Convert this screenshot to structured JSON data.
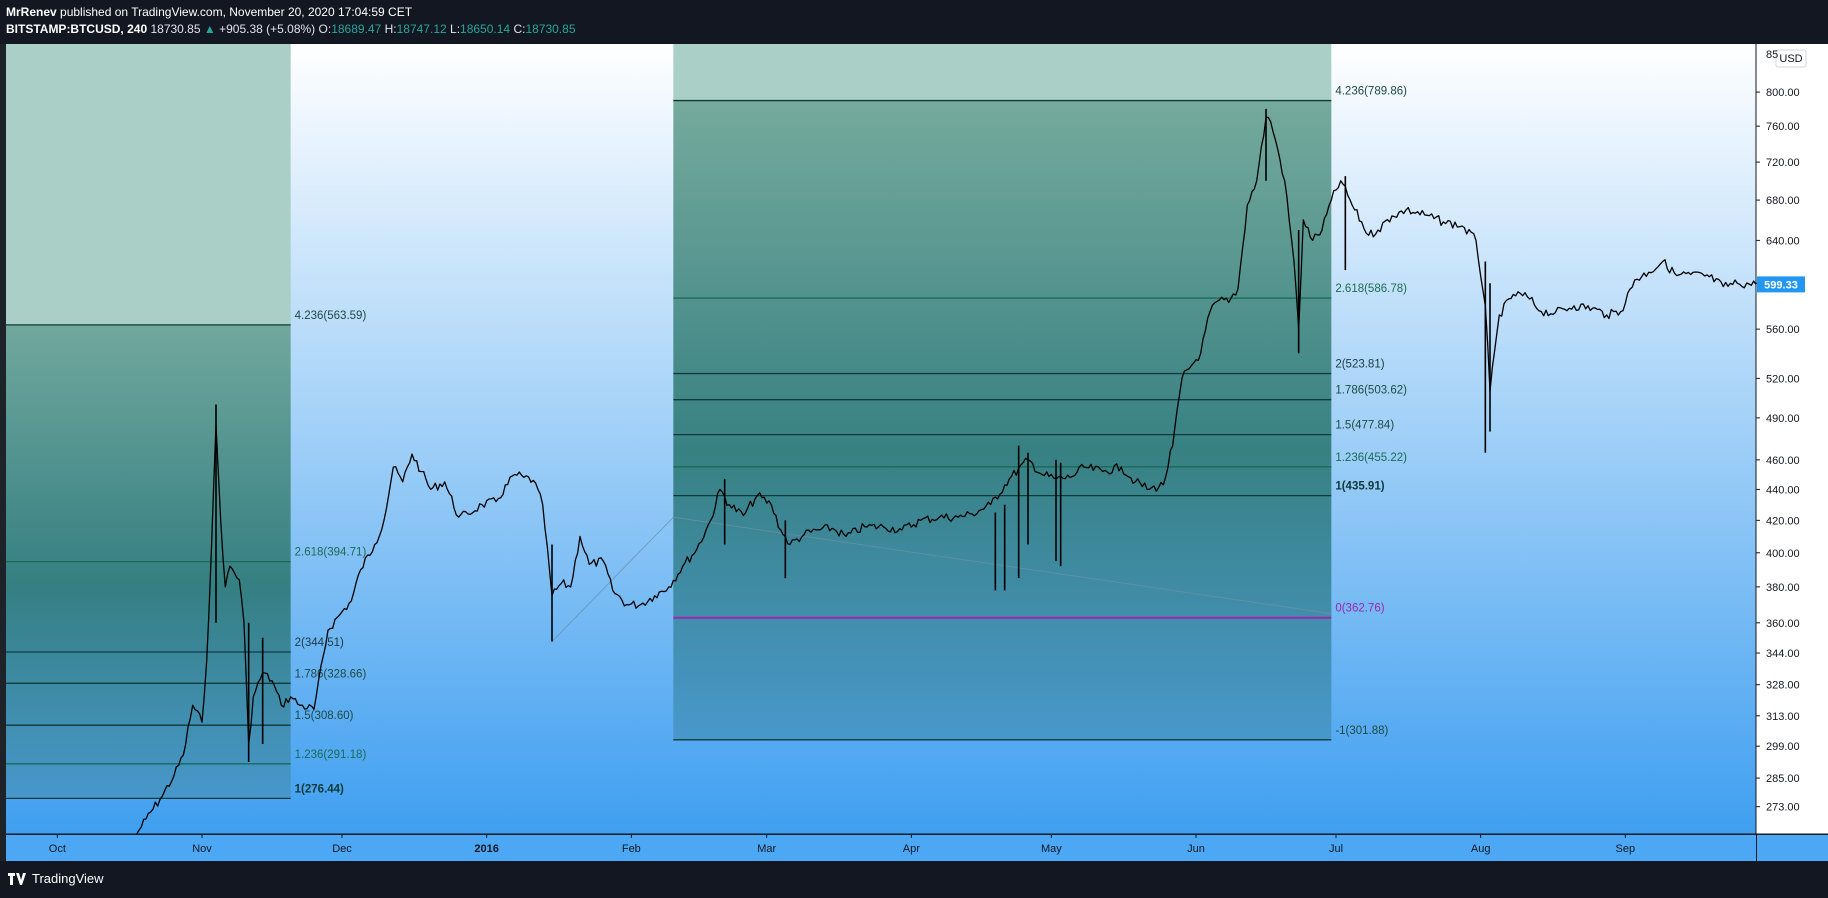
{
  "header": {
    "author": "MrRenev",
    "published": "published on TradingView.com, November 20, 2020 17:04:59 CET",
    "symbol": "BITSTAMP:BTCUSD, 240",
    "last": "18730.85",
    "change_arrow": "▲",
    "change": "+905.38 (+5.08%)",
    "o_label": "O:",
    "o_value": "18689.47",
    "h_label": "H:",
    "h_value": "18747.12",
    "l_label": "L:",
    "l_value": "18650.14",
    "c_label": "C:",
    "c_value": "18730.85"
  },
  "footer": {
    "brand": "TradingView"
  },
  "chart_data": {
    "type": "line",
    "series_name": "BTCUSD",
    "scale": "log",
    "currency_badge": "USD",
    "last_price_label": "599.33",
    "last_price_color": "#2196f3",
    "top_tick_partial": "85",
    "ylim": [
      262,
      860
    ],
    "y_ticks": [
      273,
      285,
      299,
      313,
      328,
      344,
      360,
      380,
      400,
      420,
      440,
      460,
      490,
      520,
      560,
      600,
      640,
      680,
      720,
      760,
      800
    ],
    "y_tick_labels": [
      "273.00",
      "285.00",
      "299.00",
      "313.00",
      "328.00",
      "344.00",
      "360.00",
      "380.00",
      "400.00",
      "420.00",
      "440.00",
      "460.00",
      "490.00",
      "520.00",
      "560.00",
      "600.00",
      "640.00",
      "680.00",
      "720.00",
      "760.00",
      "800.00"
    ],
    "x_range": [
      "2015-09-20",
      "2016-09-29"
    ],
    "x_ticks": [
      {
        "date": "2015-10-01",
        "label": "Oct",
        "bold": false
      },
      {
        "date": "2015-11-01",
        "label": "Nov",
        "bold": false
      },
      {
        "date": "2015-12-01",
        "label": "Dec",
        "bold": false
      },
      {
        "date": "2016-01-01",
        "label": "2016",
        "bold": true
      },
      {
        "date": "2016-02-01",
        "label": "Feb",
        "bold": false
      },
      {
        "date": "2016-03-01",
        "label": "Mar",
        "bold": false
      },
      {
        "date": "2016-04-01",
        "label": "Apr",
        "bold": false
      },
      {
        "date": "2016-05-01",
        "label": "May",
        "bold": false
      },
      {
        "date": "2016-06-01",
        "label": "Jun",
        "bold": false
      },
      {
        "date": "2016-07-01",
        "label": "Jul",
        "bold": false
      },
      {
        "date": "2016-08-01",
        "label": "Aug",
        "bold": false
      },
      {
        "date": "2016-09-01",
        "label": "Sep",
        "bold": false
      }
    ],
    "price": [
      [
        "2015-10-18",
        262
      ],
      [
        "2015-10-20",
        268
      ],
      [
        "2015-10-23",
        276
      ],
      [
        "2015-10-26",
        286
      ],
      [
        "2015-10-28",
        295
      ],
      [
        "2015-10-30",
        318
      ],
      [
        "2015-11-01",
        310
      ],
      [
        "2015-11-02",
        340
      ],
      [
        "2015-11-03",
        400
      ],
      [
        "2015-11-04",
        485
      ],
      [
        "2015-11-05",
        420
      ],
      [
        "2015-11-06",
        380
      ],
      [
        "2015-11-07",
        392
      ],
      [
        "2015-11-09",
        384
      ],
      [
        "2015-11-10",
        360
      ],
      [
        "2015-11-11",
        300
      ],
      [
        "2015-11-12",
        322
      ],
      [
        "2015-11-14",
        334
      ],
      [
        "2015-11-16",
        330
      ],
      [
        "2015-11-18",
        318
      ],
      [
        "2015-11-20",
        322
      ],
      [
        "2015-11-22",
        318
      ],
      [
        "2015-11-25",
        316
      ],
      [
        "2015-11-28",
        356
      ],
      [
        "2015-12-01",
        366
      ],
      [
        "2015-12-03",
        372
      ],
      [
        "2015-12-05",
        390
      ],
      [
        "2015-12-08",
        405
      ],
      [
        "2015-12-10",
        420
      ],
      [
        "2015-12-12",
        455
      ],
      [
        "2015-12-14",
        445
      ],
      [
        "2015-12-16",
        464
      ],
      [
        "2015-12-18",
        452
      ],
      [
        "2015-12-20",
        440
      ],
      [
        "2015-12-23",
        445
      ],
      [
        "2015-12-26",
        422
      ],
      [
        "2015-12-28",
        424
      ],
      [
        "2015-12-31",
        430
      ],
      [
        "2016-01-03",
        432
      ],
      [
        "2016-01-07",
        450
      ],
      [
        "2016-01-09",
        448
      ],
      [
        "2016-01-11",
        446
      ],
      [
        "2016-01-13",
        430
      ],
      [
        "2016-01-15",
        375
      ],
      [
        "2016-01-17",
        382
      ],
      [
        "2016-01-19",
        380
      ],
      [
        "2016-01-21",
        410
      ],
      [
        "2016-01-23",
        393
      ],
      [
        "2016-01-26",
        395
      ],
      [
        "2016-01-28",
        378
      ],
      [
        "2016-01-31",
        370
      ],
      [
        "2016-02-03",
        370
      ],
      [
        "2016-02-06",
        375
      ],
      [
        "2016-02-09",
        380
      ],
      [
        "2016-02-12",
        392
      ],
      [
        "2016-02-15",
        402
      ],
      [
        "2016-02-18",
        420
      ],
      [
        "2016-02-20",
        440
      ],
      [
        "2016-02-22",
        430
      ],
      [
        "2016-02-25",
        423
      ],
      [
        "2016-02-28",
        436
      ],
      [
        "2016-03-02",
        430
      ],
      [
        "2016-03-04",
        414
      ],
      [
        "2016-03-06",
        405
      ],
      [
        "2016-03-09",
        411
      ],
      [
        "2016-03-12",
        414
      ],
      [
        "2016-03-15",
        415
      ],
      [
        "2016-03-18",
        410
      ],
      [
        "2016-03-22",
        416
      ],
      [
        "2016-03-26",
        416
      ],
      [
        "2016-03-30",
        414
      ],
      [
        "2016-04-03",
        420
      ],
      [
        "2016-04-07",
        422
      ],
      [
        "2016-04-11",
        422
      ],
      [
        "2016-04-14",
        424
      ],
      [
        "2016-04-18",
        430
      ],
      [
        "2016-04-22",
        447
      ],
      [
        "2016-04-26",
        460
      ],
      [
        "2016-04-29",
        450
      ],
      [
        "2016-05-02",
        447
      ],
      [
        "2016-05-05",
        448
      ],
      [
        "2016-05-08",
        455
      ],
      [
        "2016-05-12",
        452
      ],
      [
        "2016-05-16",
        455
      ],
      [
        "2016-05-19",
        445
      ],
      [
        "2016-05-22",
        440
      ],
      [
        "2016-05-25",
        443
      ],
      [
        "2016-05-27",
        470
      ],
      [
        "2016-05-29",
        520
      ],
      [
        "2016-05-31",
        530
      ],
      [
        "2016-06-02",
        540
      ],
      [
        "2016-06-04",
        575
      ],
      [
        "2016-06-06",
        585
      ],
      [
        "2016-06-08",
        583
      ],
      [
        "2016-06-10",
        595
      ],
      [
        "2016-06-12",
        675
      ],
      [
        "2016-06-14",
        700
      ],
      [
        "2016-06-16",
        770
      ],
      [
        "2016-06-17",
        765
      ],
      [
        "2016-06-18",
        745
      ],
      [
        "2016-06-20",
        700
      ],
      [
        "2016-06-22",
        620
      ],
      [
        "2016-06-23",
        560
      ],
      [
        "2016-06-24",
        660
      ],
      [
        "2016-06-26",
        640
      ],
      [
        "2016-06-28",
        650
      ],
      [
        "2016-06-30",
        680
      ],
      [
        "2016-07-02",
        700
      ],
      [
        "2016-07-05",
        670
      ],
      [
        "2016-07-08",
        645
      ],
      [
        "2016-07-10",
        650
      ],
      [
        "2016-07-13",
        664
      ],
      [
        "2016-07-16",
        670
      ],
      [
        "2016-07-20",
        665
      ],
      [
        "2016-07-24",
        658
      ],
      [
        "2016-07-28",
        654
      ],
      [
        "2016-07-31",
        640
      ],
      [
        "2016-08-02",
        580
      ],
      [
        "2016-08-03",
        510
      ],
      [
        "2016-08-05",
        572
      ],
      [
        "2016-08-08",
        590
      ],
      [
        "2016-08-11",
        588
      ],
      [
        "2016-08-14",
        575
      ],
      [
        "2016-08-17",
        574
      ],
      [
        "2016-08-21",
        580
      ],
      [
        "2016-08-25",
        578
      ],
      [
        "2016-08-28",
        572
      ],
      [
        "2016-08-31",
        575
      ],
      [
        "2016-09-03",
        603
      ],
      [
        "2016-09-06",
        610
      ],
      [
        "2016-09-09",
        620
      ],
      [
        "2016-09-12",
        607
      ],
      [
        "2016-09-15",
        608
      ],
      [
        "2016-09-19",
        606
      ],
      [
        "2016-09-22",
        597
      ],
      [
        "2016-09-25",
        600
      ],
      [
        "2016-09-29",
        599
      ]
    ],
    "wicks": [
      [
        "2015-11-04",
        360,
        500
      ],
      [
        "2015-11-11",
        292,
        360
      ],
      [
        "2015-11-14",
        300,
        352
      ],
      [
        "2016-01-15",
        350,
        405
      ],
      [
        "2016-02-21",
        405,
        447
      ],
      [
        "2016-03-05",
        385,
        420
      ],
      [
        "2016-04-19",
        378,
        425
      ],
      [
        "2016-04-21",
        378,
        430
      ],
      [
        "2016-04-24",
        385,
        470
      ],
      [
        "2016-04-26",
        405,
        465
      ],
      [
        "2016-05-02",
        395,
        460
      ],
      [
        "2016-05-03",
        392,
        458
      ],
      [
        "2016-06-23",
        540,
        650
      ],
      [
        "2016-06-16",
        700,
        780
      ],
      [
        "2016-07-03",
        612,
        705
      ],
      [
        "2016-08-02",
        465,
        620
      ],
      [
        "2016-08-03",
        480,
        600
      ]
    ],
    "diagonals": [
      {
        "from": [
          "2016-01-15",
          350
        ],
        "to": [
          "2016-02-10",
          422
        ]
      },
      {
        "from": [
          "2016-02-10",
          422
        ],
        "to": [
          "2016-06-30",
          365
        ]
      }
    ],
    "fib_blocks": [
      {
        "start": "2015-09-20",
        "end": "2015-11-20",
        "levels": [
          {
            "ratio": "4.236",
            "price": 563.59,
            "label": "4.236(563.59)",
            "color": "#0e3b32",
            "text": "#1d4a43"
          },
          {
            "ratio": "2.618",
            "price": 394.71,
            "label": "2.618(394.71)",
            "color": "#1a6b55",
            "text": "#1c6b56"
          },
          {
            "ratio": "2",
            "price": 344.51,
            "label": "2(344.51)",
            "color": "#103a4a",
            "text": "#1a3a45"
          },
          {
            "ratio": "1.786",
            "price": 328.66,
            "label": "1.786(328.66)",
            "color": "#0f3a3a",
            "text": "#1d4a43"
          },
          {
            "ratio": "1.5",
            "price": 308.6,
            "label": "1.5(308.60)",
            "color": "#0f3a3a",
            "text": "#1d4a43"
          },
          {
            "ratio": "1.236",
            "price": 291.18,
            "label": "1.236(291.18)",
            "color": "#1a6b55",
            "text": "#1c6b56"
          },
          {
            "ratio": "1",
            "price": 276.44,
            "label": "1(276.44)",
            "color": "#0f3a3a",
            "text": "#0f3a3a",
            "bold": true
          }
        ]
      },
      {
        "start": "2016-02-10",
        "end": "2016-06-30",
        "levels": [
          {
            "ratio": "4.236",
            "price": 789.86,
            "label": "4.236(789.86)",
            "color": "#0e3b32",
            "text": "#1d4a43"
          },
          {
            "ratio": "2.618",
            "price": 586.78,
            "label": "2.618(586.78)",
            "color": "#1a6b55",
            "text": "#1c6b56"
          },
          {
            "ratio": "2",
            "price": 523.81,
            "label": "2(523.81)",
            "color": "#103a4a",
            "text": "#1a3a45"
          },
          {
            "ratio": "1.786",
            "price": 503.62,
            "label": "1.786(503.62)",
            "color": "#0f3a3a",
            "text": "#1d4a43"
          },
          {
            "ratio": "1.5",
            "price": 477.84,
            "label": "1.5(477.84)",
            "color": "#0f3a3a",
            "text": "#1d4a43"
          },
          {
            "ratio": "1.236",
            "price": 455.22,
            "label": "1.236(455.22)",
            "color": "#1a6b55",
            "text": "#1c6b56"
          },
          {
            "ratio": "1",
            "price": 435.91,
            "label": "1(435.91)",
            "color": "#0f3a3a",
            "text": "#0f3a3a",
            "bold": true
          },
          {
            "ratio": "0",
            "price": 362.76,
            "label": "0(362.76)",
            "color": "#9c27b0",
            "text": "#9c27b0"
          },
          {
            "ratio": "-1",
            "price": 301.88,
            "label": "-1(301.88)",
            "color": "#0f3a3a",
            "text": "#1d4a43"
          }
        ]
      }
    ]
  }
}
